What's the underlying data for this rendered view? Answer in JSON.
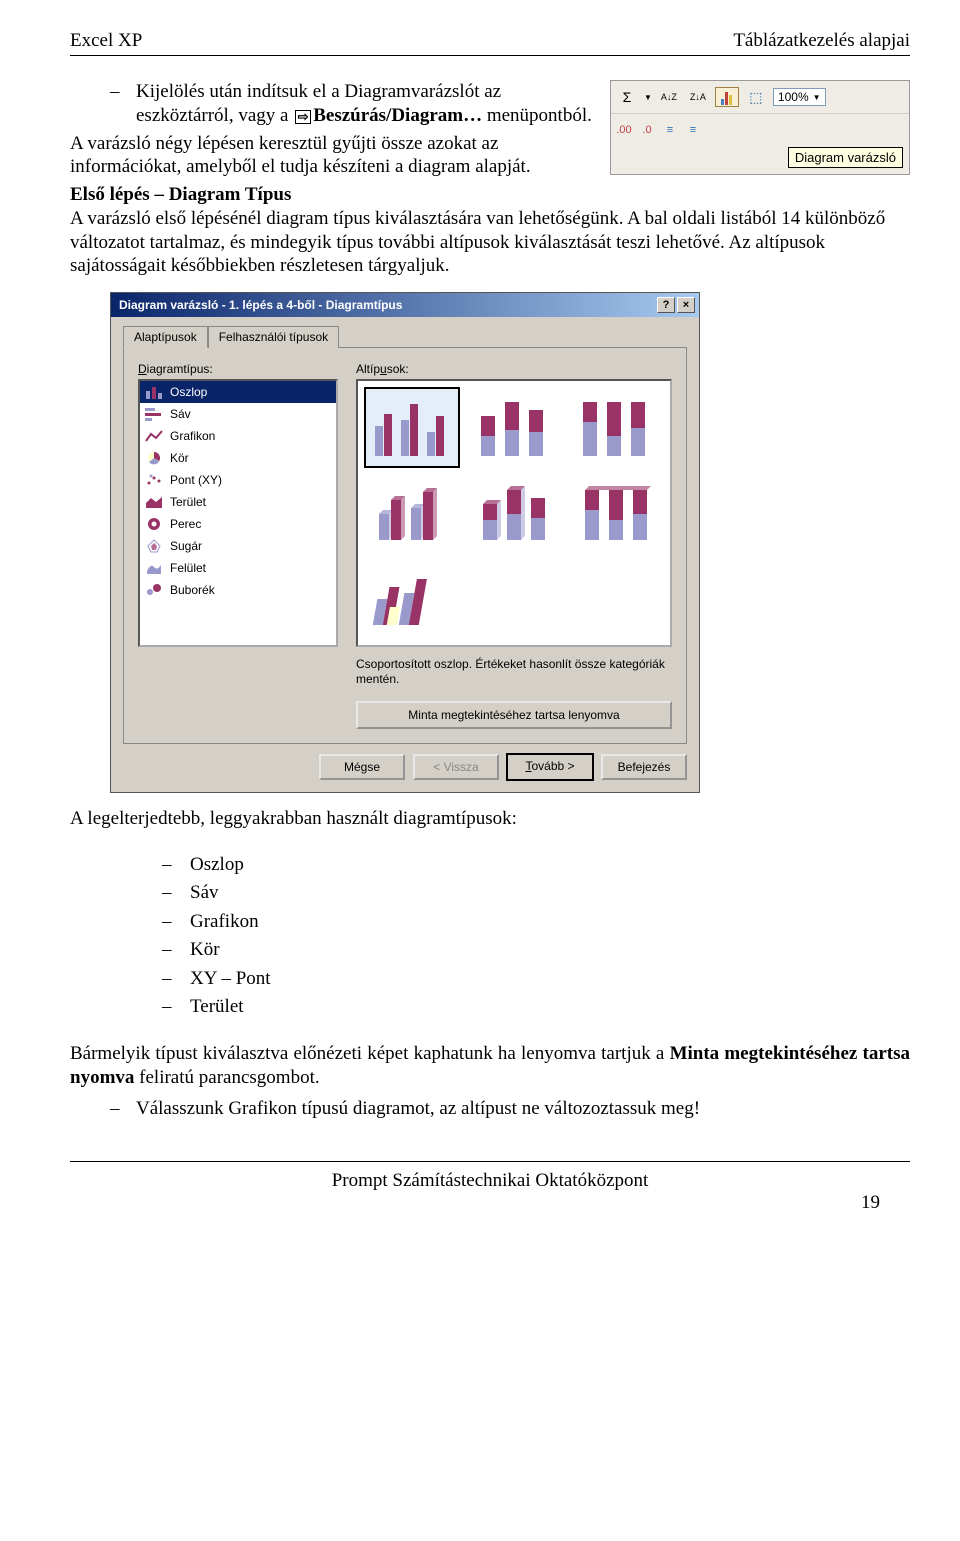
{
  "header": {
    "left": "Excel XP",
    "right": "Táblázatkezelés alapjai"
  },
  "intro": {
    "bullet1a": "Kijelölés után indítsuk el a Diagramvarázslót az eszköztárról, vagy a ",
    "bullet1b": "Beszúrás/Diagram…",
    "bullet1c": " menüpontból.",
    "p2": "A varázsló négy lépésen keresztül gyűjti össze azokat az információkat, amelyből el tudja készíteni a diagram alapját.",
    "p3_title": "Első lépés – Diagram Típus",
    "p3_body": "A varázsló első lépésénél diagram típus kiválasztására van lehetőségünk. A bal oldali listából 14 különböző változatot tartalmaz, és mindegyik típus további altípusok kiválasztását teszi lehetővé. Az altípusok sajátosságait későbbiekben részletesen tárgyaljuk."
  },
  "toolbar": {
    "sigma": "Σ",
    "sort_az": "A↓Z",
    "sort_za": "Z↓A",
    "zoom": "100%",
    "decimals_more": ".00",
    "decimals_less": ".0",
    "indent_less": "◁",
    "indent_more": "▷",
    "tooltip": "Diagram varázsló"
  },
  "dialog": {
    "title": "Diagram varázsló - 1. lépés a 4-ből - Diagramtípus",
    "help_btn": "?",
    "close_btn": "×",
    "titlebar_bg_from": "#0a246a",
    "titlebar_bg_to": "#a6caf0",
    "tab1": "Alaptípusok",
    "tab2": "Felhasználói típusok",
    "left_label_u": "D",
    "left_label": "iagramtípus:",
    "right_label": "Altíp",
    "right_label_u": "u",
    "right_label2": "sok:",
    "types": [
      {
        "label": "Oszlop",
        "icon": "bars-v"
      },
      {
        "label": "Sáv",
        "icon": "bars-h"
      },
      {
        "label": "Grafikon",
        "icon": "line"
      },
      {
        "label": "Kör",
        "icon": "pie"
      },
      {
        "label": "Pont (XY)",
        "icon": "scatter"
      },
      {
        "label": "Terület",
        "icon": "area"
      },
      {
        "label": "Perec",
        "icon": "donut"
      },
      {
        "label": "Sugár",
        "icon": "radar"
      },
      {
        "label": "Felület",
        "icon": "surface"
      },
      {
        "label": "Buborék",
        "icon": "bubble"
      }
    ],
    "selected_bg": "#0a246a",
    "chart_colors": [
      "#9999cc",
      "#993366",
      "#ffffcc"
    ],
    "subtypes": [
      {
        "kind": "clustered",
        "selected": true
      },
      {
        "kind": "stacked"
      },
      {
        "kind": "stacked100"
      },
      {
        "kind": "clustered3d"
      },
      {
        "kind": "stacked3d"
      },
      {
        "kind": "stacked100_3d"
      },
      {
        "kind": "bars3d"
      }
    ],
    "desc": "Csoportosított oszlop. Értékeket hasonlít össze kategóriák mentén.",
    "preview_btn": "Minta megtekintéséhez tartsa lenyomva",
    "btn_cancel": "Mégse",
    "btn_back": "< Vissza",
    "btn_next_u": "T",
    "btn_next": "ovább >",
    "btn_finish": "Befejezés"
  },
  "after": {
    "p1": "A legelterjedtebb, leggyakrabban használt diagramtípusok:",
    "list": [
      "Oszlop",
      "Sáv",
      "Grafikon",
      "Kör",
      "XY – Pont",
      "Terület"
    ],
    "p2a": "Bármelyik típust kiválasztva előnézeti képet kaphatunk ha lenyomva tartjuk a ",
    "p2b": "Minta megtekintéséhez tartsa nyomva",
    "p2c": " feliratú parancsgombot.",
    "bullet": "Válasszunk Grafikon típusú diagramot, az altípust ne változoztassuk meg!"
  },
  "footer": {
    "center": "Prompt Számítástechnikai Oktatóközpont",
    "page": "19"
  }
}
